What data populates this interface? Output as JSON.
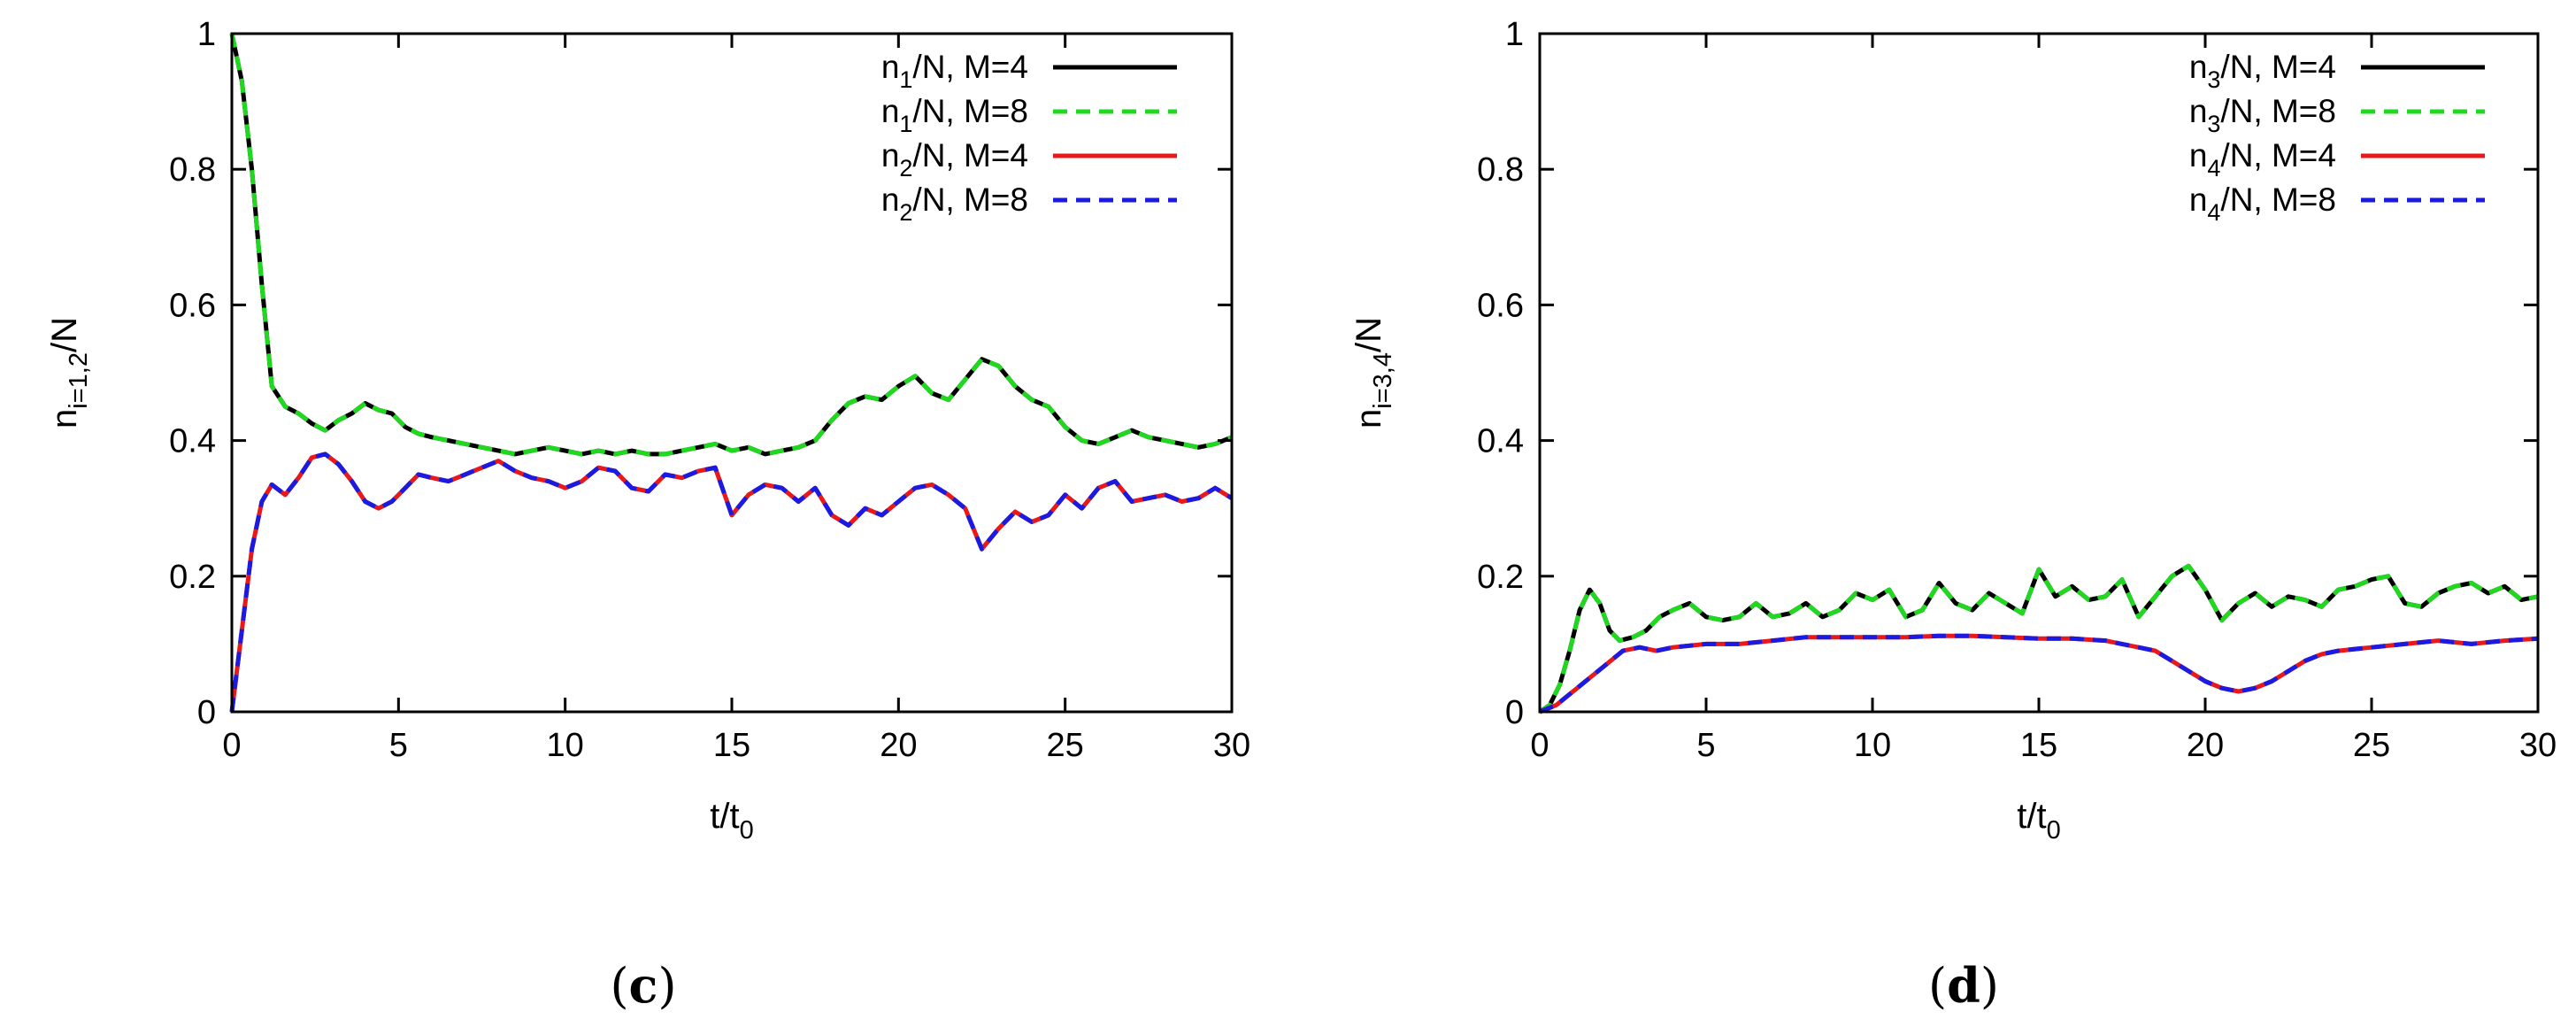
{
  "chart_data": [
    {
      "type": "line",
      "panel_label_open": "(",
      "panel_label_letter": "c",
      "panel_label_close": ")",
      "xlabel_base": "t/t",
      "xlabel_sub": "0",
      "ylabel_base": "n",
      "ylabel_sub": "i=1,2",
      "ylabel_tail": "/N",
      "xlim": [
        0,
        30
      ],
      "ylim": [
        0,
        1
      ],
      "xticks": [
        0,
        5,
        10,
        15,
        20,
        25,
        30
      ],
      "yticks": [
        0,
        0.2,
        0.4,
        0.6,
        0.8,
        1
      ],
      "ytick_labels": [
        "0",
        "0.2",
        "0.4",
        "0.6",
        "0.8",
        "1"
      ],
      "grid": false,
      "legend_position": "top-right",
      "series": [
        {
          "name_base": "n",
          "name_sub": "1",
          "name_tail": "/N, M=4",
          "color": "#000000",
          "dash": "solid",
          "x": [
            0,
            0.3,
            0.6,
            0.9,
            1.2,
            1.6,
            2,
            2.4,
            2.8,
            3.2,
            3.6,
            4,
            4.4,
            4.8,
            5.2,
            5.6,
            6,
            6.5,
            7,
            7.5,
            8,
            8.5,
            9,
            9.5,
            10,
            10.5,
            11,
            11.5,
            12,
            12.5,
            13,
            13.5,
            14,
            14.5,
            15,
            15.5,
            16,
            16.5,
            17,
            17.5,
            18,
            18.5,
            19,
            19.5,
            20,
            20.5,
            21,
            21.5,
            22,
            22.5,
            23,
            23.5,
            24,
            24.5,
            25,
            25.5,
            26,
            26.5,
            27,
            27.5,
            28,
            28.5,
            29,
            29.5,
            30
          ],
          "y": [
            1.0,
            0.93,
            0.8,
            0.63,
            0.48,
            0.45,
            0.44,
            0.425,
            0.415,
            0.43,
            0.44,
            0.455,
            0.445,
            0.44,
            0.42,
            0.41,
            0.405,
            0.4,
            0.395,
            0.39,
            0.385,
            0.38,
            0.385,
            0.39,
            0.385,
            0.38,
            0.385,
            0.38,
            0.385,
            0.38,
            0.38,
            0.385,
            0.39,
            0.395,
            0.385,
            0.39,
            0.38,
            0.385,
            0.39,
            0.4,
            0.43,
            0.455,
            0.465,
            0.46,
            0.48,
            0.495,
            0.47,
            0.46,
            0.49,
            0.52,
            0.51,
            0.48,
            0.46,
            0.45,
            0.42,
            0.4,
            0.395,
            0.405,
            0.415,
            0.405,
            0.4,
            0.395,
            0.39,
            0.395,
            0.405
          ]
        },
        {
          "name_base": "n",
          "name_sub": "1",
          "name_tail": "/N, M=8",
          "color": "#1fd81f",
          "dash": "dashed",
          "x": [
            0,
            0.3,
            0.6,
            0.9,
            1.2,
            1.6,
            2,
            2.4,
            2.8,
            3.2,
            3.6,
            4,
            4.4,
            4.8,
            5.2,
            5.6,
            6,
            6.5,
            7,
            7.5,
            8,
            8.5,
            9,
            9.5,
            10,
            10.5,
            11,
            11.5,
            12,
            12.5,
            13,
            13.5,
            14,
            14.5,
            15,
            15.5,
            16,
            16.5,
            17,
            17.5,
            18,
            18.5,
            19,
            19.5,
            20,
            20.5,
            21,
            21.5,
            22,
            22.5,
            23,
            23.5,
            24,
            24.5,
            25,
            25.5,
            26,
            26.5,
            27,
            27.5,
            28,
            28.5,
            29,
            29.5,
            30
          ],
          "y": [
            1.0,
            0.93,
            0.8,
            0.63,
            0.48,
            0.45,
            0.44,
            0.425,
            0.415,
            0.43,
            0.44,
            0.455,
            0.445,
            0.44,
            0.42,
            0.41,
            0.405,
            0.4,
            0.395,
            0.39,
            0.385,
            0.38,
            0.385,
            0.39,
            0.385,
            0.38,
            0.385,
            0.38,
            0.385,
            0.38,
            0.38,
            0.385,
            0.39,
            0.395,
            0.385,
            0.39,
            0.38,
            0.385,
            0.39,
            0.4,
            0.43,
            0.455,
            0.465,
            0.46,
            0.48,
            0.495,
            0.47,
            0.46,
            0.49,
            0.52,
            0.51,
            0.48,
            0.46,
            0.45,
            0.42,
            0.4,
            0.395,
            0.405,
            0.415,
            0.405,
            0.4,
            0.395,
            0.39,
            0.395,
            0.405
          ]
        },
        {
          "name_base": "n",
          "name_sub": "2",
          "name_tail": "/N, M=4",
          "color": "#e8191b",
          "dash": "solid",
          "x": [
            0,
            0.3,
            0.6,
            0.9,
            1.2,
            1.6,
            2,
            2.4,
            2.8,
            3.2,
            3.6,
            4,
            4.4,
            4.8,
            5.2,
            5.6,
            6,
            6.5,
            7,
            7.5,
            8,
            8.5,
            9,
            9.5,
            10,
            10.5,
            11,
            11.5,
            12,
            12.5,
            13,
            13.5,
            14,
            14.5,
            15,
            15.5,
            16,
            16.5,
            17,
            17.5,
            18,
            18.5,
            19,
            19.5,
            20,
            20.5,
            21,
            21.5,
            22,
            22.5,
            23,
            23.5,
            24,
            24.5,
            25,
            25.5,
            26,
            26.5,
            27,
            27.5,
            28,
            28.5,
            29,
            29.5,
            30
          ],
          "y": [
            0.0,
            0.12,
            0.24,
            0.31,
            0.335,
            0.32,
            0.345,
            0.375,
            0.38,
            0.365,
            0.34,
            0.31,
            0.3,
            0.31,
            0.33,
            0.35,
            0.345,
            0.34,
            0.35,
            0.36,
            0.37,
            0.355,
            0.345,
            0.34,
            0.33,
            0.34,
            0.36,
            0.355,
            0.33,
            0.325,
            0.35,
            0.345,
            0.355,
            0.36,
            0.29,
            0.32,
            0.335,
            0.33,
            0.31,
            0.33,
            0.29,
            0.275,
            0.3,
            0.29,
            0.31,
            0.33,
            0.335,
            0.32,
            0.3,
            0.24,
            0.27,
            0.295,
            0.28,
            0.29,
            0.32,
            0.3,
            0.33,
            0.34,
            0.31,
            0.315,
            0.32,
            0.31,
            0.315,
            0.33,
            0.315
          ]
        },
        {
          "name_base": "n",
          "name_sub": "2",
          "name_tail": "/N, M=8",
          "color": "#1a1ae0",
          "dash": "dashed",
          "x": [
            0,
            0.3,
            0.6,
            0.9,
            1.2,
            1.6,
            2,
            2.4,
            2.8,
            3.2,
            3.6,
            4,
            4.4,
            4.8,
            5.2,
            5.6,
            6,
            6.5,
            7,
            7.5,
            8,
            8.5,
            9,
            9.5,
            10,
            10.5,
            11,
            11.5,
            12,
            12.5,
            13,
            13.5,
            14,
            14.5,
            15,
            15.5,
            16,
            16.5,
            17,
            17.5,
            18,
            18.5,
            19,
            19.5,
            20,
            20.5,
            21,
            21.5,
            22,
            22.5,
            23,
            23.5,
            24,
            24.5,
            25,
            25.5,
            26,
            26.5,
            27,
            27.5,
            28,
            28.5,
            29,
            29.5,
            30
          ],
          "y": [
            0.0,
            0.12,
            0.24,
            0.31,
            0.335,
            0.32,
            0.345,
            0.375,
            0.38,
            0.365,
            0.34,
            0.31,
            0.3,
            0.31,
            0.33,
            0.35,
            0.345,
            0.34,
            0.35,
            0.36,
            0.37,
            0.355,
            0.345,
            0.34,
            0.33,
            0.34,
            0.36,
            0.355,
            0.33,
            0.325,
            0.35,
            0.345,
            0.355,
            0.36,
            0.29,
            0.32,
            0.335,
            0.33,
            0.31,
            0.33,
            0.29,
            0.275,
            0.3,
            0.29,
            0.31,
            0.33,
            0.335,
            0.32,
            0.3,
            0.24,
            0.27,
            0.295,
            0.28,
            0.29,
            0.32,
            0.3,
            0.33,
            0.34,
            0.31,
            0.315,
            0.32,
            0.31,
            0.315,
            0.33,
            0.315
          ]
        }
      ]
    },
    {
      "type": "line",
      "panel_label_open": "(",
      "panel_label_letter": "d",
      "panel_label_close": ")",
      "xlabel_base": "t/t",
      "xlabel_sub": "0",
      "ylabel_base": "n",
      "ylabel_sub": "i=3,4",
      "ylabel_tail": "/N",
      "xlim": [
        0,
        30
      ],
      "ylim": [
        0,
        1
      ],
      "xticks": [
        0,
        5,
        10,
        15,
        20,
        25,
        30
      ],
      "yticks": [
        0,
        0.2,
        0.4,
        0.6,
        0.8,
        1
      ],
      "ytick_labels": [
        "0",
        "0.2",
        "0.4",
        "0.6",
        "0.8",
        "1"
      ],
      "grid": false,
      "legend_position": "top-right",
      "series": [
        {
          "name_base": "n",
          "name_sub": "3",
          "name_tail": "/N, M=4",
          "color": "#000000",
          "dash": "solid",
          "x": [
            0,
            0.3,
            0.6,
            0.9,
            1.2,
            1.5,
            1.8,
            2.1,
            2.4,
            2.8,
            3.2,
            3.6,
            4,
            4.5,
            5,
            5.5,
            6,
            6.5,
            7,
            7.5,
            8,
            8.5,
            9,
            9.5,
            10,
            10.5,
            11,
            11.5,
            12,
            12.5,
            13,
            13.5,
            14,
            14.5,
            15,
            15.5,
            16,
            16.5,
            17,
            17.5,
            18,
            18.5,
            19,
            19.5,
            20,
            20.5,
            21,
            21.5,
            22,
            22.5,
            23,
            23.5,
            24,
            24.5,
            25,
            25.5,
            26,
            26.5,
            27,
            27.5,
            28,
            28.5,
            29,
            29.5,
            30
          ],
          "y": [
            0.0,
            0.01,
            0.04,
            0.09,
            0.15,
            0.18,
            0.16,
            0.12,
            0.105,
            0.11,
            0.12,
            0.14,
            0.15,
            0.16,
            0.14,
            0.135,
            0.14,
            0.16,
            0.14,
            0.145,
            0.16,
            0.14,
            0.15,
            0.175,
            0.165,
            0.18,
            0.14,
            0.15,
            0.19,
            0.16,
            0.15,
            0.175,
            0.16,
            0.145,
            0.21,
            0.17,
            0.185,
            0.165,
            0.17,
            0.195,
            0.14,
            0.17,
            0.2,
            0.215,
            0.18,
            0.135,
            0.16,
            0.175,
            0.155,
            0.17,
            0.165,
            0.155,
            0.18,
            0.185,
            0.195,
            0.2,
            0.16,
            0.155,
            0.175,
            0.185,
            0.19,
            0.175,
            0.185,
            0.165,
            0.17
          ]
        },
        {
          "name_base": "n",
          "name_sub": "3",
          "name_tail": "/N, M=8",
          "color": "#1fd81f",
          "dash": "dashed",
          "x": [
            0,
            0.3,
            0.6,
            0.9,
            1.2,
            1.5,
            1.8,
            2.1,
            2.4,
            2.8,
            3.2,
            3.6,
            4,
            4.5,
            5,
            5.5,
            6,
            6.5,
            7,
            7.5,
            8,
            8.5,
            9,
            9.5,
            10,
            10.5,
            11,
            11.5,
            12,
            12.5,
            13,
            13.5,
            14,
            14.5,
            15,
            15.5,
            16,
            16.5,
            17,
            17.5,
            18,
            18.5,
            19,
            19.5,
            20,
            20.5,
            21,
            21.5,
            22,
            22.5,
            23,
            23.5,
            24,
            24.5,
            25,
            25.5,
            26,
            26.5,
            27,
            27.5,
            28,
            28.5,
            29,
            29.5,
            30
          ],
          "y": [
            0.0,
            0.01,
            0.04,
            0.09,
            0.15,
            0.18,
            0.16,
            0.12,
            0.105,
            0.11,
            0.12,
            0.14,
            0.15,
            0.16,
            0.14,
            0.135,
            0.14,
            0.16,
            0.14,
            0.145,
            0.16,
            0.14,
            0.15,
            0.175,
            0.165,
            0.18,
            0.14,
            0.15,
            0.19,
            0.16,
            0.15,
            0.175,
            0.16,
            0.145,
            0.21,
            0.17,
            0.185,
            0.165,
            0.17,
            0.195,
            0.14,
            0.17,
            0.2,
            0.215,
            0.18,
            0.135,
            0.16,
            0.175,
            0.155,
            0.17,
            0.165,
            0.155,
            0.18,
            0.185,
            0.195,
            0.2,
            0.16,
            0.155,
            0.175,
            0.185,
            0.19,
            0.175,
            0.185,
            0.165,
            0.17
          ]
        },
        {
          "name_base": "n",
          "name_sub": "4",
          "name_tail": "/N, M=4",
          "color": "#e8191b",
          "dash": "solid",
          "x": [
            0,
            0.5,
            1,
            1.5,
            2,
            2.5,
            3,
            3.5,
            4,
            5,
            6,
            7,
            8,
            9,
            10,
            11,
            12,
            13,
            14,
            15,
            16,
            17,
            17.5,
            18,
            18.5,
            19,
            19.5,
            20,
            20.5,
            21,
            21.5,
            22,
            22.5,
            23,
            23.5,
            24,
            25,
            26,
            27,
            28,
            29,
            30
          ],
          "y": [
            0.0,
            0.01,
            0.03,
            0.05,
            0.07,
            0.09,
            0.095,
            0.09,
            0.095,
            0.1,
            0.1,
            0.105,
            0.11,
            0.11,
            0.11,
            0.11,
            0.112,
            0.112,
            0.11,
            0.108,
            0.108,
            0.105,
            0.1,
            0.095,
            0.09,
            0.075,
            0.06,
            0.045,
            0.035,
            0.03,
            0.035,
            0.045,
            0.06,
            0.075,
            0.085,
            0.09,
            0.095,
            0.1,
            0.105,
            0.1,
            0.105,
            0.108
          ]
        },
        {
          "name_base": "n",
          "name_sub": "4",
          "name_tail": "/N, M=8",
          "color": "#1a1ae0",
          "dash": "dashed",
          "x": [
            0,
            0.5,
            1,
            1.5,
            2,
            2.5,
            3,
            3.5,
            4,
            5,
            6,
            7,
            8,
            9,
            10,
            11,
            12,
            13,
            14,
            15,
            16,
            17,
            17.5,
            18,
            18.5,
            19,
            19.5,
            20,
            20.5,
            21,
            21.5,
            22,
            22.5,
            23,
            23.5,
            24,
            25,
            26,
            27,
            28,
            29,
            30
          ],
          "y": [
            0.0,
            0.01,
            0.03,
            0.05,
            0.07,
            0.09,
            0.095,
            0.09,
            0.095,
            0.1,
            0.1,
            0.105,
            0.11,
            0.11,
            0.11,
            0.11,
            0.112,
            0.112,
            0.11,
            0.108,
            0.108,
            0.105,
            0.1,
            0.095,
            0.09,
            0.075,
            0.06,
            0.045,
            0.035,
            0.03,
            0.035,
            0.045,
            0.06,
            0.075,
            0.085,
            0.09,
            0.095,
            0.1,
            0.105,
            0.1,
            0.105,
            0.108
          ]
        }
      ]
    }
  ]
}
